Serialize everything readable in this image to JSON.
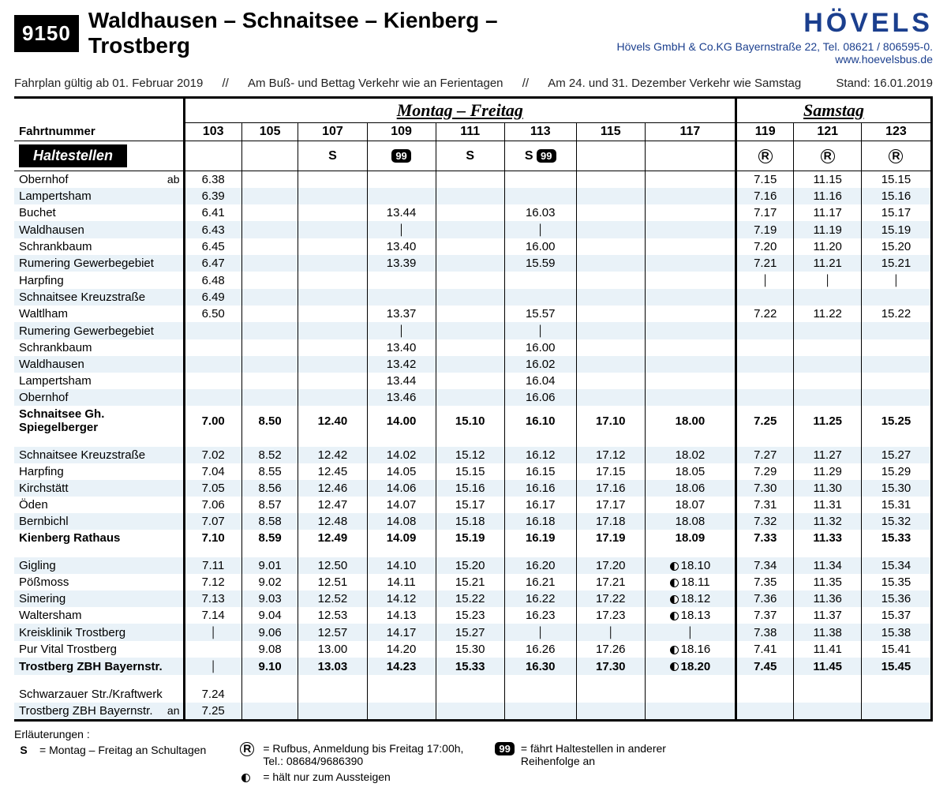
{
  "route_number": "9150",
  "route_title": "Waldhausen – Schnaitsee – Kienberg – Trostberg",
  "brand": "HÖVELS",
  "brand_sub": "Hövels GmbH & Co.KG Bayernstraße 22, Tel. 08621 / 806595-0. www.hoevelsbus.de",
  "validity1": "Fahrplan gültig ab 01. Februar 2019",
  "validity2": "Am Buß- und Bettag Verkehr wie an Ferientagen",
  "validity3": "Am 24. und 31. Dezember Verkehr wie Samstag",
  "stand": "Stand: 16.01.2019",
  "fahrtnummer_label": "Fahrtnummer",
  "haltestellen_label": "Haltestellen",
  "day_header_wk": "Montag – Freitag",
  "day_header_sa": "Samstag",
  "trips": [
    "103",
    "105",
    "107",
    "109",
    "111",
    "113",
    "115",
    "117",
    "119",
    "121",
    "123"
  ],
  "symbols": [
    "",
    "",
    "S",
    "99",
    "S",
    "S99",
    "",
    "",
    "R",
    "R",
    "R"
  ],
  "stops": [
    {
      "name": "Obernhof",
      "ab": true,
      "times": [
        "6.38",
        "",
        "",
        "",
        "",
        "",
        "",
        "",
        "7.15",
        "11.15",
        "15.15"
      ],
      "bold": false
    },
    {
      "name": "Lampertsham",
      "times": [
        "6.39",
        "",
        "",
        "",
        "",
        "",
        "",
        "",
        "7.16",
        "11.16",
        "15.16"
      ]
    },
    {
      "name": "Buchet",
      "times": [
        "6.41",
        "",
        "",
        "13.44",
        "",
        "16.03",
        "",
        "",
        "7.17",
        "11.17",
        "15.17"
      ]
    },
    {
      "name": "Waldhausen",
      "times": [
        "6.43",
        "",
        "",
        "|",
        "",
        "|",
        "",
        "",
        "7.19",
        "11.19",
        "15.19"
      ]
    },
    {
      "name": "Schrankbaum",
      "times": [
        "6.45",
        "",
        "",
        "13.40",
        "",
        "16.00",
        "",
        "",
        "7.20",
        "11.20",
        "15.20"
      ]
    },
    {
      "name": "Rumering Gewerbegebiet",
      "times": [
        "6.47",
        "",
        "",
        "13.39",
        "",
        "15.59",
        "",
        "",
        "7.21",
        "11.21",
        "15.21"
      ]
    },
    {
      "name": "Harpfing",
      "times": [
        "6.48",
        "",
        "",
        "",
        "",
        "",
        "",
        "",
        "|",
        "|",
        "|"
      ]
    },
    {
      "name": "Schnaitsee Kreuzstraße",
      "times": [
        "6.49",
        "",
        "",
        "",
        "",
        "",
        "",
        "",
        "",
        "",
        ""
      ]
    },
    {
      "name": "Waltlham",
      "times": [
        "6.50",
        "",
        "",
        "13.37",
        "",
        "15.57",
        "",
        "",
        "7.22",
        "11.22",
        "15.22"
      ]
    },
    {
      "name": "Rumering Gewerbegebiet",
      "times": [
        "",
        "",
        "",
        "|",
        "",
        "|",
        "",
        "",
        "",
        "",
        ""
      ]
    },
    {
      "name": "Schrankbaum",
      "times": [
        "",
        "",
        "",
        "13.40",
        "",
        "16.00",
        "",
        "",
        "",
        "",
        ""
      ]
    },
    {
      "name": "Waldhausen",
      "times": [
        "",
        "",
        "",
        "13.42",
        "",
        "16.02",
        "",
        "",
        "",
        "",
        ""
      ]
    },
    {
      "name": "Lampertsham",
      "times": [
        "",
        "",
        "",
        "13.44",
        "",
        "16.04",
        "",
        "",
        "",
        "",
        ""
      ]
    },
    {
      "name": "Obernhof",
      "times": [
        "",
        "",
        "",
        "13.46",
        "",
        "16.06",
        "",
        "",
        "",
        "",
        ""
      ]
    },
    {
      "name": "Schnaitsee Gh. Spiegelberger",
      "bold": true,
      "times": [
        "7.00",
        "8.50",
        "12.40",
        "14.00",
        "15.10",
        "16.10",
        "17.10",
        "18.00",
        "7.25",
        "11.25",
        "15.25"
      ]
    },
    {
      "spacer": true
    },
    {
      "name": "Schnaitsee Kreuzstraße",
      "times": [
        "7.02",
        "8.52",
        "12.42",
        "14.02",
        "15.12",
        "16.12",
        "17.12",
        "18.02",
        "7.27",
        "11.27",
        "15.27"
      ]
    },
    {
      "name": "Harpfing",
      "times": [
        "7.04",
        "8.55",
        "12.45",
        "14.05",
        "15.15",
        "16.15",
        "17.15",
        "18.05",
        "7.29",
        "11.29",
        "15.29"
      ]
    },
    {
      "name": "Kirchstätt",
      "times": [
        "7.05",
        "8.56",
        "12.46",
        "14.06",
        "15.16",
        "16.16",
        "17.16",
        "18.06",
        "7.30",
        "11.30",
        "15.30"
      ]
    },
    {
      "name": "Öden",
      "times": [
        "7.06",
        "8.57",
        "12.47",
        "14.07",
        "15.17",
        "16.17",
        "17.17",
        "18.07",
        "7.31",
        "11.31",
        "15.31"
      ]
    },
    {
      "name": "Bernbichl",
      "times": [
        "7.07",
        "8.58",
        "12.48",
        "14.08",
        "15.18",
        "16.18",
        "17.18",
        "18.08",
        "7.32",
        "11.32",
        "15.32"
      ]
    },
    {
      "name": "Kienberg Rathaus",
      "bold": true,
      "times": [
        "7.10",
        "8.59",
        "12.49",
        "14.09",
        "15.19",
        "16.19",
        "17.19",
        "18.09",
        "7.33",
        "11.33",
        "15.33"
      ]
    },
    {
      "spacer": true
    },
    {
      "name": "Gigling",
      "times": [
        "7.11",
        "9.01",
        "12.50",
        "14.10",
        "15.20",
        "16.20",
        "17.20",
        "◐ 18.10",
        "7.34",
        "11.34",
        "15.34"
      ]
    },
    {
      "name": "Pößmoss",
      "times": [
        "7.12",
        "9.02",
        "12.51",
        "14.11",
        "15.21",
        "16.21",
        "17.21",
        "◐ 18.11",
        "7.35",
        "11.35",
        "15.35"
      ]
    },
    {
      "name": "Simering",
      "times": [
        "7.13",
        "9.03",
        "12.52",
        "14.12",
        "15.22",
        "16.22",
        "17.22",
        "◐ 18.12",
        "7.36",
        "11.36",
        "15.36"
      ]
    },
    {
      "name": "Waltersham",
      "times": [
        "7.14",
        "9.04",
        "12.53",
        "14.13",
        "15.23",
        "16.23",
        "17.23",
        "◐ 18.13",
        "7.37",
        "11.37",
        "15.37"
      ]
    },
    {
      "name": "Kreisklinik Trostberg",
      "times": [
        "|",
        "9.06",
        "12.57",
        "14.17",
        "15.27",
        "|",
        "|",
        "|",
        "7.38",
        "11.38",
        "15.38"
      ]
    },
    {
      "name": "Pur Vital Trostberg",
      "times": [
        "",
        "9.08",
        "13.00",
        "14.20",
        "15.30",
        "16.26",
        "17.26",
        "◐ 18.16",
        "7.41",
        "11.41",
        "15.41"
      ]
    },
    {
      "name": "Trostberg ZBH Bayernstr.",
      "bold": true,
      "times": [
        "|",
        "9.10",
        "13.03",
        "14.23",
        "15.33",
        "16.30",
        "17.30",
        "◐ 18.20",
        "7.45",
        "11.45",
        "15.45"
      ]
    },
    {
      "spacer": true
    },
    {
      "name": "Schwarzauer Str./Kraftwerk",
      "times": [
        "7.24",
        "",
        "",
        "",
        "",
        "",
        "",
        "",
        "",
        "",
        ""
      ]
    },
    {
      "name": "Trostberg ZBH Bayernstr.",
      "an": true,
      "times": [
        "7.25",
        "",
        "",
        "",
        "",
        "",
        "",
        "",
        "",
        "",
        ""
      ]
    }
  ],
  "legend": {
    "title": "Erläuterungen :",
    "items": [
      {
        "sym": "S",
        "text": "= Montag – Freitag an Schultagen"
      },
      {
        "sym": "R",
        "text": "= Rufbus, Anmeldung bis Freitag 17:00h,\n   Tel.: 08684/9686390"
      },
      {
        "sym": "◐",
        "text": "= hält nur zum Aussteigen"
      },
      {
        "sym": "99",
        "text": "= fährt Haltestellen in anderer\n   Reihenfolge an"
      }
    ]
  },
  "colors": {
    "zebra": "#e9f2f8",
    "brand": "#1b3f8e"
  }
}
